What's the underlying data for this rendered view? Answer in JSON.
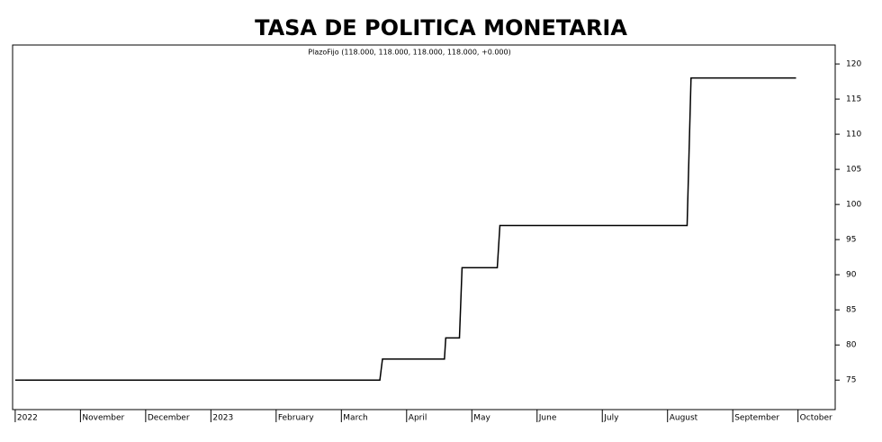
{
  "chart_data": {
    "type": "line",
    "title": "TASA DE POLITICA MONETARIA",
    "subtitle": "PlazoFijo (118.000, 118.000, 118.000, 118.000, +0.000)",
    "x": [
      0,
      5.59,
      5.63,
      6.58,
      6.6,
      6.81,
      6.85,
      7.39,
      7.43,
      10.3,
      10.36,
      11.97
    ],
    "series": [
      {
        "name": "PlazoFijo",
        "color": "#000000",
        "values": [
          75,
          75,
          78,
          78,
          81,
          81,
          91,
          91,
          97,
          97,
          118,
          118
        ]
      }
    ],
    "xlim": [
      -0.04,
      12.57
    ],
    "xticks": [
      {
        "value": 0,
        "label": "2022"
      },
      {
        "value": 1,
        "label": "November"
      },
      {
        "value": 2,
        "label": "December"
      },
      {
        "value": 3,
        "label": "2023"
      },
      {
        "value": 4,
        "label": "February"
      },
      {
        "value": 5,
        "label": "March"
      },
      {
        "value": 6,
        "label": "April"
      },
      {
        "value": 7,
        "label": "May"
      },
      {
        "value": 8,
        "label": "June"
      },
      {
        "value": 9,
        "label": "July"
      },
      {
        "value": 10,
        "label": "August"
      },
      {
        "value": 11,
        "label": "September"
      },
      {
        "value": 12,
        "label": "October"
      }
    ],
    "ylim": [
      70.8,
      122.7
    ],
    "yticks": [
      75,
      80,
      85,
      90,
      95,
      100,
      105,
      110,
      115,
      120
    ]
  }
}
